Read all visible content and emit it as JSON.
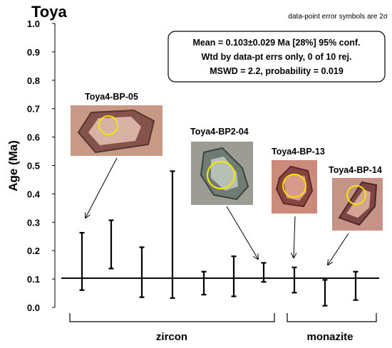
{
  "chart_data": {
    "type": "errorbar",
    "title": "Toya",
    "note": "data-point error symbols are 2σ",
    "ylabel": "Age (Ma)",
    "ylim": [
      0,
      1
    ],
    "yticks": [
      "0.0",
      "0.1",
      "0.2",
      "0.3",
      "0.4",
      "0.5",
      "0.6",
      "0.7",
      "0.8",
      "0.9",
      "1.0"
    ],
    "mean": 0.103,
    "points": [
      {
        "low": 0.061,
        "high": 0.263
      },
      {
        "low": 0.137,
        "high": 0.307
      },
      {
        "low": 0.036,
        "high": 0.212
      },
      {
        "low": 0.033,
        "high": 0.48
      },
      {
        "low": 0.045,
        "high": 0.126
      },
      {
        "low": 0.039,
        "high": 0.18
      },
      {
        "low": 0.09,
        "high": 0.157
      },
      {
        "low": 0.052,
        "high": 0.141
      },
      {
        "low": 0.006,
        "high": 0.097
      },
      {
        "low": 0.026,
        "high": 0.126
      }
    ],
    "stats": [
      "Mean = 0.103±0.029 Ma [28%]  95% conf.",
      "Wtd by data-pt errs only, 0 of 10 rej.",
      "MSWD = 2.2, probability = 0.019"
    ],
    "groups": [
      {
        "label": "zircon"
      },
      {
        "label": "monazite"
      }
    ],
    "grains": [
      {
        "label": "Toya4-BP-05"
      },
      {
        "label": "Toya4-BP2-04"
      },
      {
        "label": "Toya4-BP-13"
      },
      {
        "label": "Toya4-BP-14"
      }
    ]
  },
  "colors": {
    "circle": "#f2e600",
    "photo_bg_1": "#c89a86",
    "photo_bg_2": "#9c9c94",
    "photo_bg_3": "#cc8a7a",
    "photo_bg_4": "#c69486"
  }
}
